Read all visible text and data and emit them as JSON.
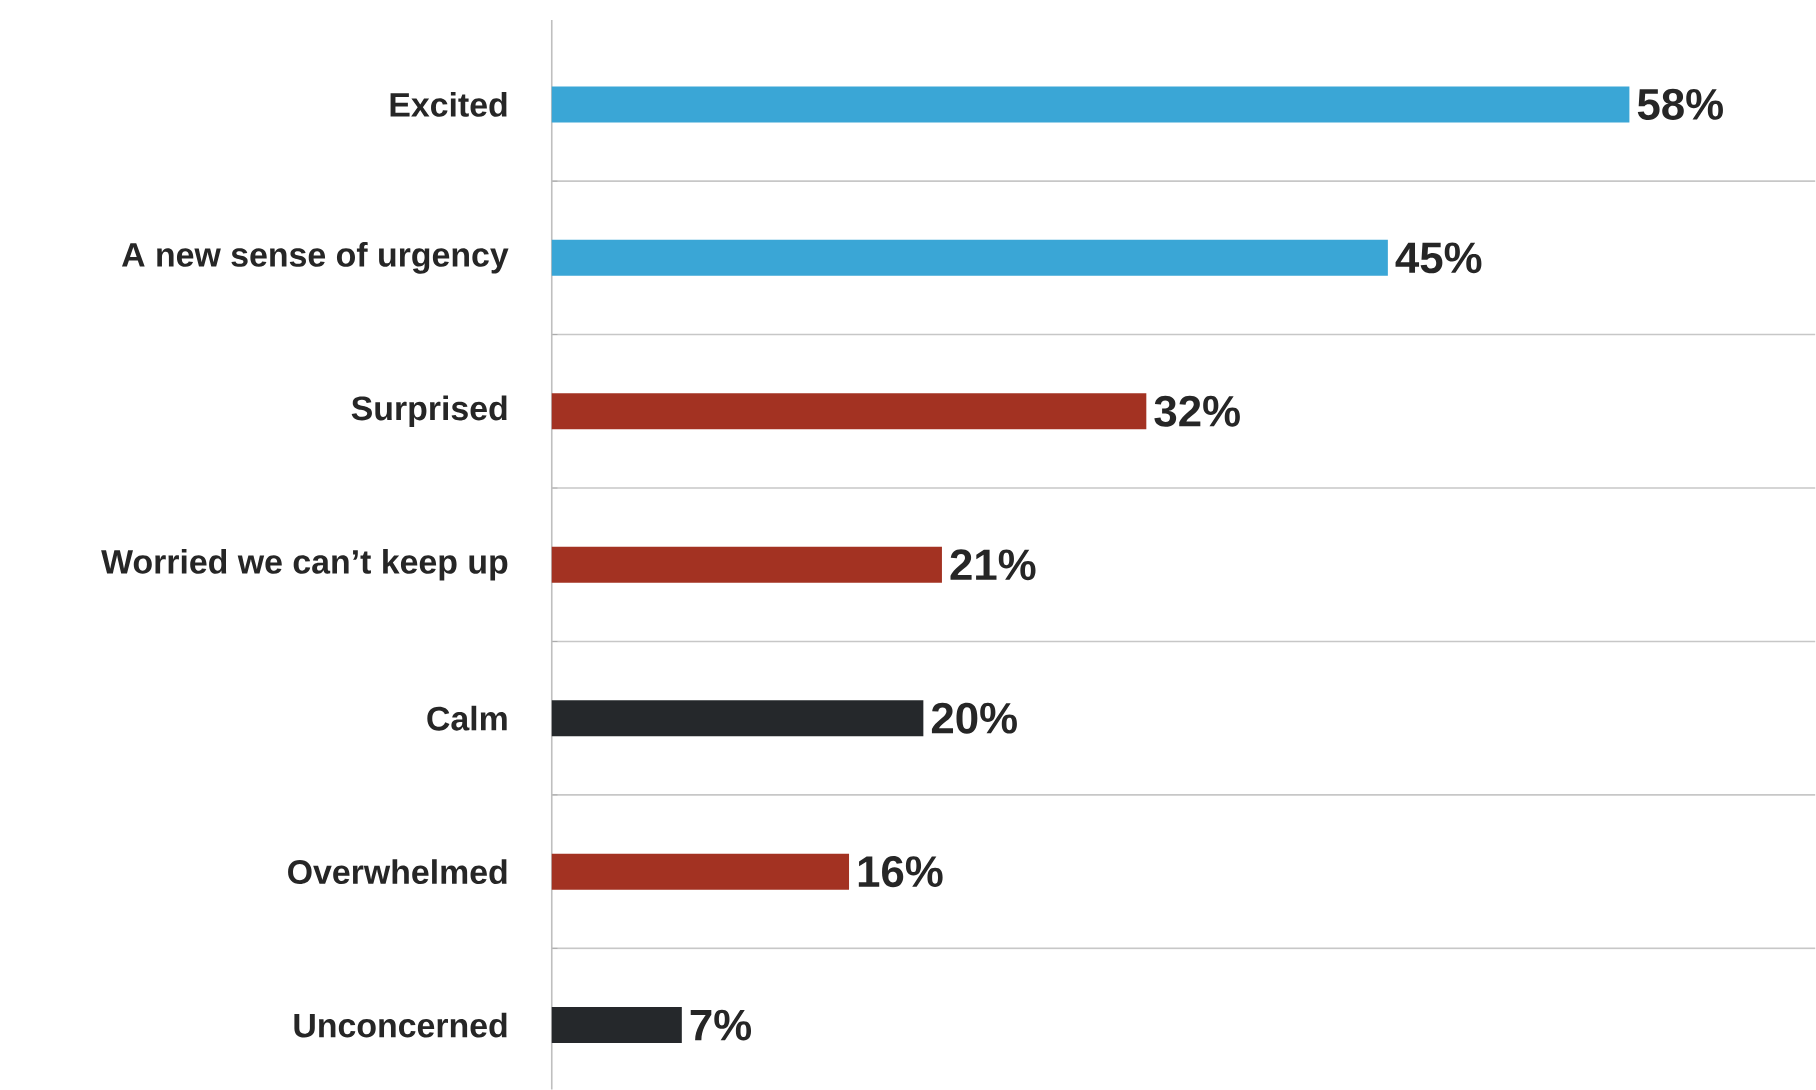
{
  "chart_data": {
    "type": "bar",
    "orientation": "horizontal",
    "categories": [
      "Excited",
      "A new sense of urgency",
      "Surprised",
      "Worried we can’t keep up",
      "Calm",
      "Overwhelmed",
      "Unconcerned"
    ],
    "values": [
      58,
      45,
      32,
      21,
      20,
      16,
      7
    ],
    "value_labels": [
      "58%",
      "45%",
      "32%",
      "21%",
      "20%",
      "16%",
      "7%"
    ],
    "colors": [
      "#3aa6d6",
      "#3aa6d6",
      "#a33222",
      "#a33222",
      "#25282b",
      "#a33222",
      "#25282b"
    ],
    "xlim": [
      0,
      68
    ],
    "grid": "y"
  }
}
